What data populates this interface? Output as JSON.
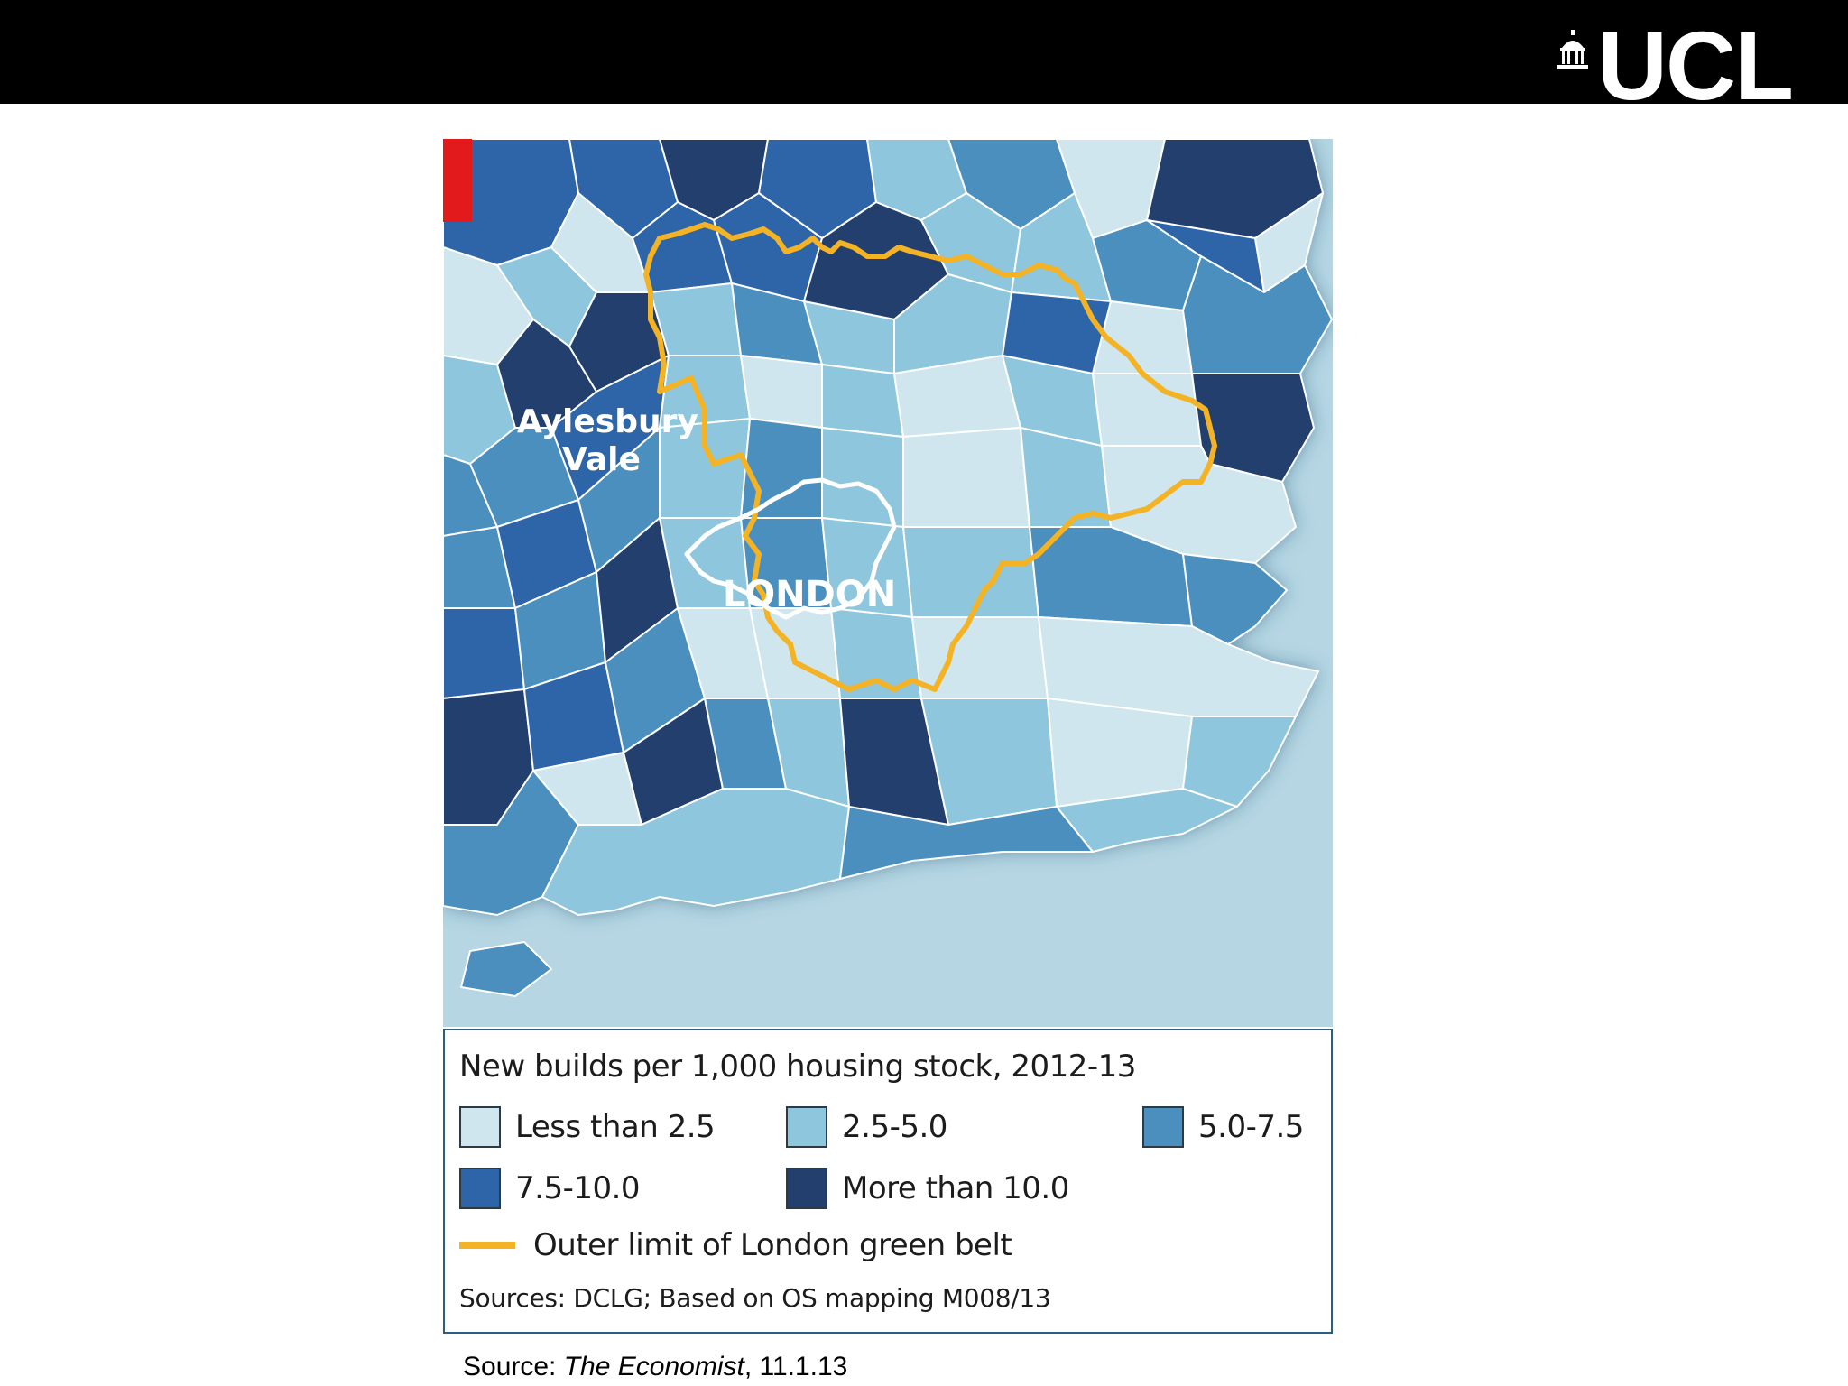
{
  "header": {
    "logo_text": "UCL",
    "logo_icon": "portico-dome-icon"
  },
  "map": {
    "labels": {
      "aylesbury_line1": "Aylesbury",
      "aylesbury_line2": "Vale",
      "london": "LONDON"
    },
    "colors": {
      "sea": "#b6d6e3",
      "boundary": "#ffffff",
      "green_belt": "#f4b324",
      "london_outline": "#ffffff",
      "accent_red": "#e31a1c"
    }
  },
  "legend": {
    "title": "New builds per 1,000 housing stock, 2012-13",
    "items": [
      {
        "label": "Less than 2.5",
        "color": "#cfe6ee"
      },
      {
        "label": "2.5-5.0",
        "color": "#8ec6dd"
      },
      {
        "label": "5.0-7.5",
        "color": "#4a8fbd"
      },
      {
        "label": "7.5-10.0",
        "color": "#2e64a8"
      },
      {
        "label": "More than 10.0",
        "color": "#223f6e"
      }
    ],
    "line_item": {
      "label": "Outer limit of London green belt",
      "color": "#f4b324"
    },
    "sources": "Sources: DCLG; Based on OS mapping M008/13"
  },
  "footer": {
    "source_prefix": "Source: ",
    "source_publication": "The Economist",
    "source_date": ", 11.1.13"
  }
}
